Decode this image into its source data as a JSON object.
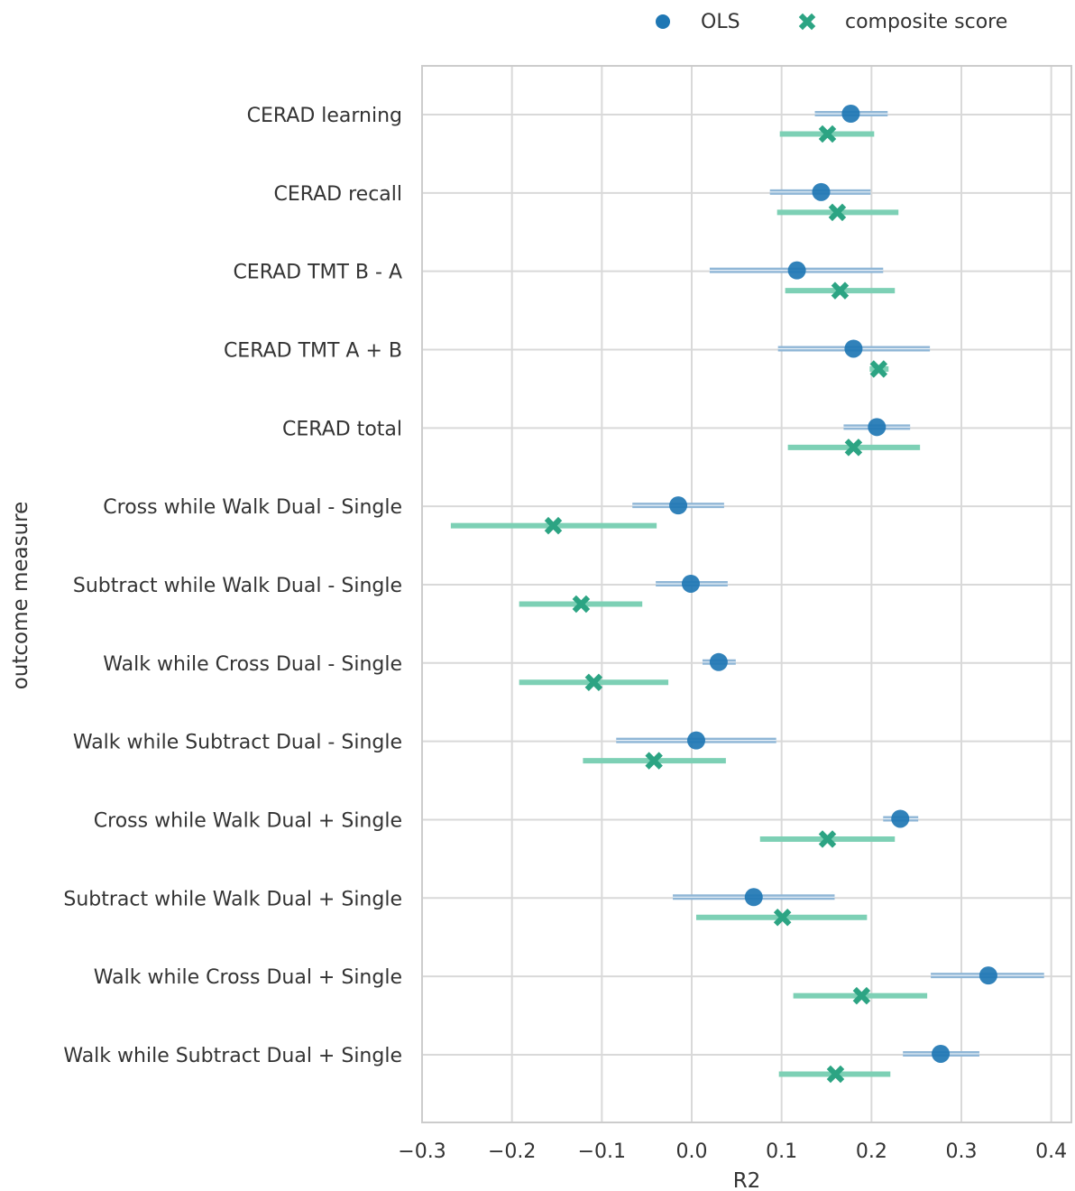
{
  "chart_data": {
    "type": "scatter",
    "xlabel": "R2",
    "ylabel": "outcome measure",
    "xlim": [
      -0.3,
      0.42
    ],
    "xticks": [
      -0.3,
      -0.2,
      -0.1,
      0.0,
      0.1,
      0.2,
      0.3,
      0.4
    ],
    "xtick_labels": [
      "−0.3",
      "−0.2",
      "−0.1",
      "0.0",
      "0.1",
      "0.2",
      "0.3",
      "0.4"
    ],
    "grid": true,
    "legend_position": "top-right",
    "categories": [
      "CERAD learning",
      "CERAD recall",
      "CERAD TMT B - A",
      "CERAD TMT A + B",
      "CERAD total",
      "Cross while Walk Dual - Single",
      "Subtract while Walk Dual - Single",
      "Walk while Cross Dual - Single",
      "Walk while Subtract Dual - Single",
      "Cross while Walk Dual + Single",
      "Subtract while Walk Dual + Single",
      "Walk while Cross Dual + Single",
      "Walk while Subtract Dual + Single"
    ],
    "series": [
      {
        "name": "OLS",
        "color": "#1f77b4",
        "bar_color": "#8fb6d6",
        "marker": "circle",
        "values": [
          0.177,
          0.144,
          0.117,
          0.18,
          0.206,
          -0.015,
          -0.001,
          0.03,
          0.005,
          0.232,
          0.069,
          0.33,
          0.277
        ],
        "ci_low": [
          0.137,
          0.087,
          0.02,
          0.096,
          0.169,
          -0.066,
          -0.04,
          0.012,
          -0.084,
          0.213,
          -0.021,
          0.266,
          0.235
        ],
        "ci_high": [
          0.218,
          0.199,
          0.213,
          0.265,
          0.243,
          0.036,
          0.04,
          0.049,
          0.094,
          0.252,
          0.159,
          0.392,
          0.32
        ]
      },
      {
        "name": "composite score",
        "color": "#2ca483",
        "bar_color": "#7dd0b5",
        "marker": "x",
        "values": [
          0.151,
          0.162,
          0.165,
          0.208,
          0.18,
          -0.154,
          -0.123,
          -0.109,
          -0.042,
          0.151,
          0.101,
          0.189,
          0.16
        ],
        "ci_low": [
          0.098,
          0.095,
          0.104,
          0.198,
          0.107,
          -0.268,
          -0.192,
          -0.192,
          -0.121,
          0.076,
          0.005,
          0.113,
          0.097
        ],
        "ci_high": [
          0.203,
          0.23,
          0.226,
          0.219,
          0.254,
          -0.039,
          -0.055,
          -0.026,
          0.038,
          0.226,
          0.195,
          0.262,
          0.221
        ]
      }
    ]
  }
}
